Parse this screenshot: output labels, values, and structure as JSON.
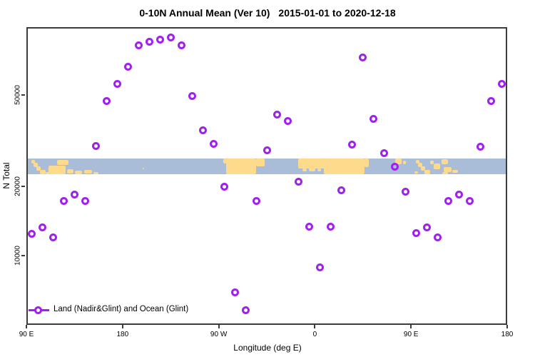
{
  "title": {
    "left": "0-10N Annual Mean (Ver 10)",
    "right": "2015-01-01 to 2020-12-18"
  },
  "legend": {
    "label": "Land (Nadir&Glint) and Ocean (Glint)"
  },
  "colors": {
    "marker": "#A020F0",
    "ocean": "#A9BDD8",
    "land": "#FDDA8C",
    "frame": "#3c3c3c"
  },
  "chart_data": {
    "type": "scatter",
    "title": "0-10N Annual Mean (Ver 10)  2015-01-01 to 2020-12-18",
    "xlabel": "Longitude (deg E)",
    "ylabel": "N Total",
    "x_axis": {
      "tick_labels": [
        "90 E",
        "180",
        "90 W",
        "0",
        "90 E",
        "180"
      ],
      "tick_positions_deg_east": [
        90,
        180,
        270,
        360,
        450,
        540
      ],
      "range_deg_east": [
        90,
        540
      ]
    },
    "y_axis": {
      "scale": "log",
      "tick_values": [
        10000,
        20000,
        50000
      ],
      "tick_labels": [
        "10000",
        "20000",
        "50000"
      ],
      "range": [
        5000,
        100000
      ]
    },
    "grid": false,
    "legend_position": "bottom-left-inside",
    "series": [
      {
        "name": "Land (Nadir&Glint) and Ocean (Glint)",
        "marker": "open-circle",
        "color": "#A020F0",
        "points": [
          {
            "lon": 95,
            "n": 12400
          },
          {
            "lon": 105,
            "n": 13200
          },
          {
            "lon": 115,
            "n": 12000
          },
          {
            "lon": 125,
            "n": 17200
          },
          {
            "lon": 135,
            "n": 18400
          },
          {
            "lon": 145,
            "n": 17200
          },
          {
            "lon": 155,
            "n": 30000
          },
          {
            "lon": 165,
            "n": 47200
          },
          {
            "lon": 175,
            "n": 56000
          },
          {
            "lon": 185,
            "n": 66500
          },
          {
            "lon": 195,
            "n": 82000
          },
          {
            "lon": 205,
            "n": 85000
          },
          {
            "lon": 215,
            "n": 87000
          },
          {
            "lon": 225,
            "n": 89000
          },
          {
            "lon": 235,
            "n": 82000
          },
          {
            "lon": 245,
            "n": 49300
          },
          {
            "lon": 255,
            "n": 35200
          },
          {
            "lon": 265,
            "n": 30700
          },
          {
            "lon": 275,
            "n": 19900
          },
          {
            "lon": 285,
            "n": 6900
          },
          {
            "lon": 295,
            "n": 5750
          },
          {
            "lon": 305,
            "n": 17200
          },
          {
            "lon": 315,
            "n": 28600
          },
          {
            "lon": 325,
            "n": 41000
          },
          {
            "lon": 335,
            "n": 38400
          },
          {
            "lon": 345,
            "n": 21000
          },
          {
            "lon": 355,
            "n": 13300
          },
          {
            "lon": 365,
            "n": 8850
          },
          {
            "lon": 375,
            "n": 13300
          },
          {
            "lon": 385,
            "n": 19200
          },
          {
            "lon": 395,
            "n": 30500
          },
          {
            "lon": 405,
            "n": 73000
          },
          {
            "lon": 415,
            "n": 39200
          },
          {
            "lon": 425,
            "n": 27800
          },
          {
            "lon": 435,
            "n": 24400
          },
          {
            "lon": 445,
            "n": 18900
          },
          {
            "lon": 455,
            "n": 12500
          },
          {
            "lon": 465,
            "n": 13200
          },
          {
            "lon": 475,
            "n": 12000
          },
          {
            "lon": 485,
            "n": 17300
          },
          {
            "lon": 495,
            "n": 18400
          },
          {
            "lon": 505,
            "n": 17200
          },
          {
            "lon": 515,
            "n": 29700
          },
          {
            "lon": 525,
            "n": 47200
          },
          {
            "lon": 535,
            "n": 55700
          }
        ]
      }
    ],
    "map_strip": {
      "description": "0-10N latitude world-map band drawn across plot",
      "n_value_range": [
        22500,
        26500
      ],
      "ocean_color": "#A9BDD8",
      "land_color": "#FDDA8C",
      "land_patches": [
        [
          7,
          2,
          5,
          5
        ],
        [
          10,
          6,
          6,
          6
        ],
        [
          14,
          11,
          6,
          6
        ],
        [
          19,
          16,
          8,
          6
        ],
        [
          27,
          19,
          7,
          3
        ],
        [
          43,
          2,
          16,
          7
        ],
        [
          31,
          10,
          24,
          12
        ],
        [
          57,
          15,
          9,
          6
        ],
        [
          68,
          17,
          10,
          5
        ],
        [
          81,
          16,
          11,
          5
        ],
        [
          94,
          19,
          7,
          3
        ],
        [
          163,
          13,
          2,
          2
        ],
        [
          276,
          0,
          5,
          7
        ],
        [
          280,
          0,
          42,
          22
        ],
        [
          322,
          0,
          12,
          11
        ],
        [
          381,
          0,
          37,
          14
        ],
        [
          387,
          14,
          6,
          4
        ],
        [
          396,
          13,
          9,
          5
        ],
        [
          408,
          14,
          5,
          4
        ],
        [
          417,
          0,
          57,
          22
        ],
        [
          474,
          0,
          6,
          12
        ],
        [
          517,
          0,
          9,
          8
        ],
        [
          528,
          3,
          4,
          5
        ],
        [
          546,
          2,
          5,
          5
        ],
        [
          549,
          6,
          6,
          6
        ],
        [
          553,
          11,
          6,
          6
        ],
        [
          558,
          16,
          8,
          6
        ],
        [
          544,
          18,
          5,
          3
        ],
        [
          566,
          3,
          5,
          5
        ],
        [
          571,
          7,
          9,
          8
        ],
        [
          582,
          1,
          9,
          7
        ],
        [
          585,
          12,
          11,
          7
        ],
        [
          597,
          16,
          8,
          4
        ],
        [
          583,
          19,
          8,
          3
        ]
      ]
    }
  }
}
